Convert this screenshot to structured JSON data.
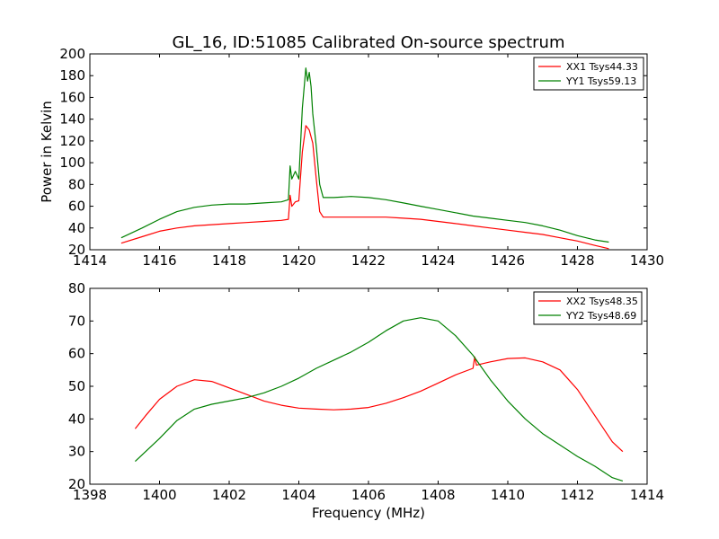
{
  "figure": {
    "title": "GL_16, ID:51085 Calibrated On-source spectrum",
    "ylabel": "Power in Kelvin",
    "xlabel": "Frequency (MHz)"
  },
  "chart_data": [
    {
      "type": "line",
      "title": "GL_16, ID:51085 Calibrated On-source spectrum",
      "ylabel": "Power in Kelvin",
      "xlabel": "",
      "xlim": [
        1414,
        1430
      ],
      "ylim": [
        20,
        200
      ],
      "xticks": [
        "1414",
        "1416",
        "1418",
        "1420",
        "1422",
        "1424",
        "1426",
        "1428",
        "1430"
      ],
      "yticks": [
        "20",
        "40",
        "60",
        "80",
        "100",
        "120",
        "140",
        "160",
        "180",
        "200"
      ],
      "grid": false,
      "legend": "top-right",
      "series": [
        {
          "name": "XX1 Tsys44.33",
          "color": "#ff0000",
          "x": [
            1414.9,
            1415.5,
            1416.0,
            1416.5,
            1417.0,
            1417.5,
            1418.0,
            1418.5,
            1419.0,
            1419.5,
            1419.7,
            1419.75,
            1419.8,
            1419.9,
            1420.0,
            1420.1,
            1420.2,
            1420.3,
            1420.4,
            1420.5,
            1420.6,
            1420.7,
            1421.0,
            1421.5,
            1422.0,
            1422.5,
            1423.0,
            1423.5,
            1424.0,
            1424.5,
            1425.0,
            1425.5,
            1426.0,
            1426.5,
            1427.0,
            1427.5,
            1428.0,
            1428.5,
            1428.9
          ],
          "values": [
            26,
            32,
            37,
            40,
            42,
            43,
            44,
            45,
            46,
            47,
            48,
            70,
            60,
            64,
            65,
            110,
            134,
            130,
            118,
            85,
            55,
            50,
            50,
            50,
            50,
            50,
            49,
            48,
            46,
            44,
            42,
            40,
            38,
            36,
            34,
            31,
            28,
            24,
            21
          ]
        },
        {
          "name": "YY1 Tsys59.13",
          "color": "#008000",
          "x": [
            1414.9,
            1415.5,
            1416.0,
            1416.5,
            1417.0,
            1417.5,
            1418.0,
            1418.5,
            1419.0,
            1419.5,
            1419.7,
            1419.75,
            1419.8,
            1419.9,
            1420.0,
            1420.1,
            1420.2,
            1420.25,
            1420.3,
            1420.35,
            1420.4,
            1420.5,
            1420.6,
            1420.7,
            1421.0,
            1421.5,
            1422.0,
            1422.5,
            1423.0,
            1423.5,
            1424.0,
            1424.5,
            1425.0,
            1425.5,
            1426.0,
            1426.5,
            1427.0,
            1427.5,
            1428.0,
            1428.5,
            1428.9
          ],
          "values": [
            31,
            40,
            48,
            55,
            59,
            61,
            62,
            62,
            63,
            64,
            66,
            97,
            85,
            92,
            85,
            150,
            187,
            175,
            183,
            170,
            145,
            115,
            80,
            68,
            68,
            69,
            68,
            66,
            63,
            60,
            57,
            54,
            51,
            49,
            47,
            45,
            42,
            38,
            33,
            29,
            27
          ]
        }
      ]
    },
    {
      "type": "line",
      "title": "",
      "ylabel": "",
      "xlabel": "Frequency (MHz)",
      "xlim": [
        1398,
        1414
      ],
      "ylim": [
        20,
        80
      ],
      "xticks": [
        "1398",
        "1400",
        "1402",
        "1404",
        "1406",
        "1408",
        "1410",
        "1412",
        "1414"
      ],
      "yticks": [
        "20",
        "30",
        "40",
        "50",
        "60",
        "70",
        "80"
      ],
      "grid": false,
      "legend": "top-right",
      "series": [
        {
          "name": "XX2 Tsys48.35",
          "color": "#ff0000",
          "x": [
            1399.3,
            1399.6,
            1400.0,
            1400.5,
            1401.0,
            1401.5,
            1402.0,
            1402.5,
            1403.0,
            1403.5,
            1404.0,
            1404.5,
            1405.0,
            1405.5,
            1406.0,
            1406.5,
            1407.0,
            1407.5,
            1408.0,
            1408.5,
            1409.0,
            1409.05,
            1409.1,
            1409.5,
            1410.0,
            1410.5,
            1411.0,
            1411.5,
            1412.0,
            1412.5,
            1413.0,
            1413.3
          ],
          "values": [
            37,
            41,
            46,
            50,
            52,
            51.5,
            49.5,
            47.5,
            45.5,
            44.2,
            43.3,
            43,
            42.8,
            43,
            43.5,
            44.8,
            46.5,
            48.5,
            51,
            53.5,
            55.5,
            59,
            56.5,
            57.5,
            58.5,
            58.7,
            57.5,
            55,
            49,
            41,
            33,
            30
          ]
        },
        {
          "name": "YY2 Tsys48.69",
          "color": "#008000",
          "x": [
            1399.3,
            1400.0,
            1400.5,
            1401.0,
            1401.5,
            1402.0,
            1402.5,
            1403.0,
            1403.5,
            1404.0,
            1404.5,
            1405.0,
            1405.5,
            1406.0,
            1406.5,
            1407.0,
            1407.5,
            1408.0,
            1408.5,
            1409.0,
            1409.5,
            1410.0,
            1410.5,
            1411.0,
            1411.5,
            1412.0,
            1412.5,
            1413.0,
            1413.3
          ],
          "values": [
            27,
            34,
            39.5,
            43,
            44.5,
            45.5,
            46.5,
            48,
            50,
            52.5,
            55.5,
            58,
            60.5,
            63.5,
            67,
            70,
            71,
            70,
            65.5,
            59.5,
            52,
            45.5,
            40,
            35.5,
            32,
            28.5,
            25.5,
            22,
            21
          ]
        }
      ]
    }
  ]
}
